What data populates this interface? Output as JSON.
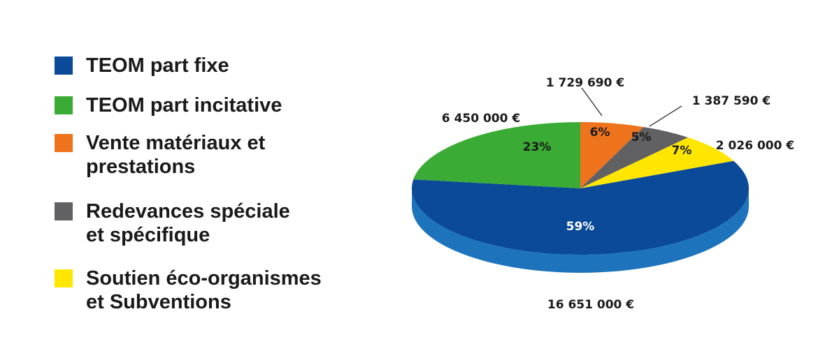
{
  "chart_data": {
    "type": "pie",
    "slices": [
      {
        "name": "TEOM part fixe",
        "value": 16651000,
        "value_label": "16 651 000 €",
        "percent_label": "59%",
        "color": "#0a4a98",
        "side_color": "#1e74bc"
      },
      {
        "name": "TEOM part incitative",
        "value": 6450000,
        "value_label": "6 450 000 €",
        "percent_label": "23%",
        "color": "#3aab34",
        "side_color": "#2e8c2a"
      },
      {
        "name": "Vente matériaux et\nprestations",
        "value": 1729690,
        "value_label": "1 729 690 €",
        "percent_label": "6%",
        "color": "#ee731c",
        "side_color": "#c55d12"
      },
      {
        "name": "Redevances spéciale\net spécifique",
        "value": 1387590,
        "value_label": "1 387 590  €",
        "percent_label": "5%",
        "color": "#616163",
        "side_color": "#4a4a4c"
      },
      {
        "name": "Soutien éco-organismes\net Subventions",
        "value": 2026000,
        "value_label": "2 026 000  €",
        "percent_label": "7%",
        "color": "#ffe600",
        "side_color": "#d6c100"
      }
    ],
    "legend_placement": "left"
  }
}
